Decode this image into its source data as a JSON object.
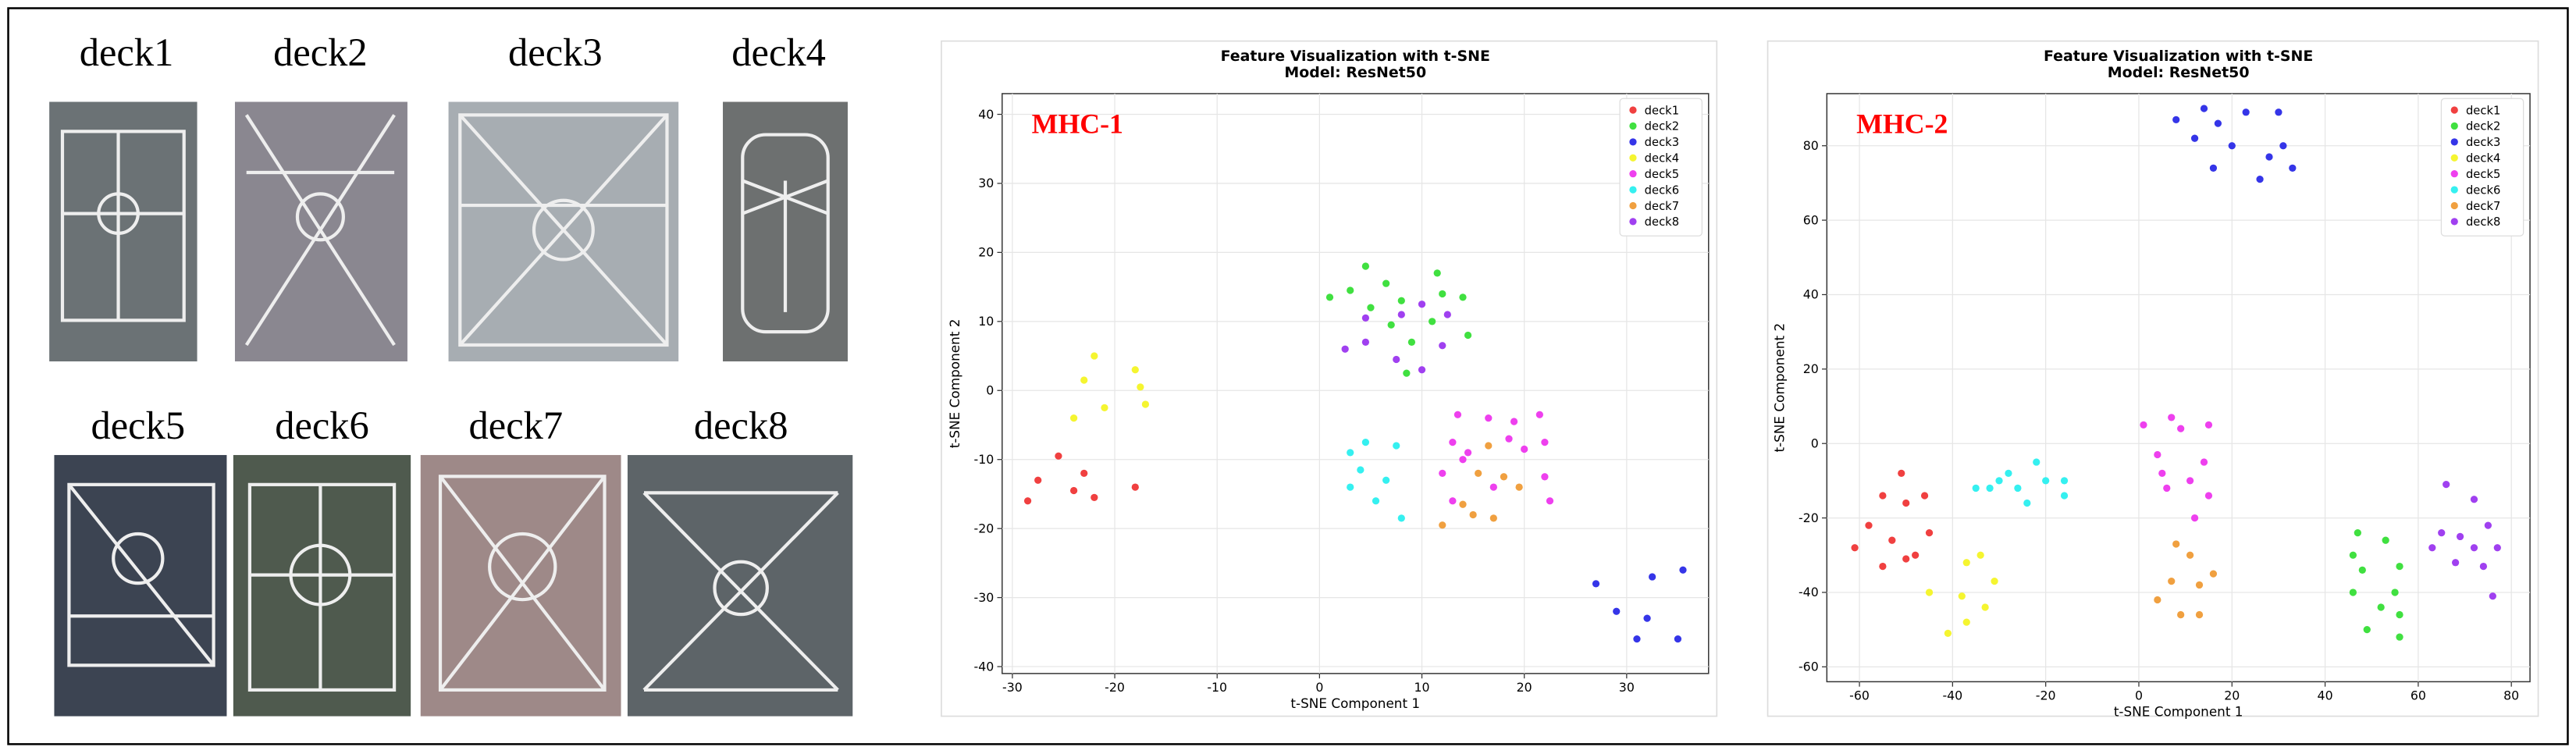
{
  "image_panels": {
    "labels": [
      "deck1",
      "deck2",
      "deck3",
      "deck4",
      "deck5",
      "deck6",
      "deck7",
      "deck8"
    ]
  },
  "chart_data": [
    {
      "type": "scatter",
      "title": "Feature Visualization with t-SNE",
      "subtitle": "Model: ResNet50",
      "annotation": "MHC-1",
      "x_label": "t-SNE Component 1",
      "y_label": "t-SNE Component 2",
      "xlim": [
        -31,
        38
      ],
      "ylim": [
        -41,
        43
      ],
      "xticks": [
        -30,
        -20,
        -10,
        0,
        10,
        20,
        30
      ],
      "yticks": [
        -40,
        -30,
        -20,
        -10,
        0,
        10,
        20,
        30,
        40
      ],
      "grid": true,
      "legend": "upper-right",
      "series": [
        {
          "name": "deck1",
          "color": "#f04040",
          "x": [
            -28.5,
            -27.5,
            -25.5,
            -24,
            -22,
            -23,
            -18
          ],
          "values": [
            -16,
            -13,
            -9.5,
            -14.5,
            -15.5,
            -12,
            -14
          ]
        },
        {
          "name": "deck2",
          "color": "#40e040",
          "x": [
            1,
            3,
            4.5,
            6.5,
            8,
            5,
            7,
            9,
            8.5,
            11.5,
            12,
            14,
            14.5,
            11
          ],
          "values": [
            13.5,
            14.5,
            18,
            15.5,
            13,
            12,
            9.5,
            7,
            2.5,
            17,
            14,
            13.5,
            8,
            10
          ]
        },
        {
          "name": "deck3",
          "color": "#3535e8",
          "x": [
            27,
            29,
            32.5,
            35.5,
            32,
            31,
            35
          ],
          "values": [
            -28,
            -32,
            -27,
            -26,
            -33,
            -36,
            -36
          ]
        },
        {
          "name": "deck4",
          "color": "#f5f530",
          "x": [
            -22,
            -21,
            -23,
            -24,
            -18,
            -17.5,
            -17
          ],
          "values": [
            5,
            -2.5,
            1.5,
            -4,
            3,
            0.5,
            -2
          ]
        },
        {
          "name": "deck5",
          "color": "#ee40ee",
          "x": [
            12,
            13,
            13.5,
            14.5,
            16.5,
            18.5,
            19,
            20,
            21.5,
            22,
            22,
            22.5,
            17,
            13,
            14
          ],
          "values": [
            -12,
            -7.5,
            -3.5,
            -9,
            -4,
            -7,
            -4.5,
            -8.5,
            -3.5,
            -7.5,
            -12.5,
            -16,
            -14,
            -16,
            -10
          ]
        },
        {
          "name": "deck6",
          "color": "#35f0f0",
          "x": [
            3,
            4.5,
            4,
            6.5,
            7.5,
            3,
            5.5,
            8
          ],
          "values": [
            -9,
            -7.5,
            -11.5,
            -13,
            -8,
            -14,
            -16,
            -18.5
          ]
        },
        {
          "name": "deck7",
          "color": "#f0a040",
          "x": [
            12,
            14,
            15.5,
            16.5,
            17,
            19.5,
            15,
            18
          ],
          "values": [
            -19.5,
            -16.5,
            -12,
            -8,
            -18.5,
            -14,
            -18,
            -12.5
          ]
        },
        {
          "name": "deck8",
          "color": "#a040f0",
          "x": [
            2.5,
            4.5,
            4.5,
            7.5,
            8,
            10,
            12,
            12.5,
            10
          ],
          "values": [
            6,
            10.5,
            7,
            4.5,
            11,
            12.5,
            6.5,
            11,
            3
          ]
        }
      ]
    },
    {
      "type": "scatter",
      "title": "Feature Visualization with t-SNE",
      "subtitle": "Model: ResNet50",
      "annotation": "MHC-2",
      "x_label": "t-SNE Component 1",
      "y_label": "t-SNE Component 2",
      "xlim": [
        -67,
        84
      ],
      "ylim": [
        -64,
        94
      ],
      "xticks": [
        -60,
        -40,
        -20,
        0,
        20,
        40,
        60,
        80
      ],
      "yticks": [
        -60,
        -40,
        -20,
        0,
        20,
        40,
        60,
        80
      ],
      "grid": true,
      "legend": "upper-right",
      "series": [
        {
          "name": "deck1",
          "color": "#f04040",
          "x": [
            -61,
            -58,
            -55,
            -53,
            -51,
            -50,
            -48,
            -46,
            -45,
            -55,
            -50
          ],
          "values": [
            -28,
            -22,
            -14,
            -26,
            -8,
            -16,
            -30,
            -14,
            -24,
            -33,
            -31
          ]
        },
        {
          "name": "deck2",
          "color": "#40e040",
          "x": [
            47,
            46,
            48,
            46,
            49,
            53,
            55,
            56,
            52,
            56,
            56
          ],
          "values": [
            -24,
            -30,
            -34,
            -40,
            -50,
            -26,
            -40,
            -33,
            -44,
            -46,
            -52
          ]
        },
        {
          "name": "deck3",
          "color": "#3535e8",
          "x": [
            8,
            12,
            14,
            17,
            16,
            20,
            23,
            26,
            28,
            30,
            31,
            33
          ],
          "values": [
            87,
            82,
            90,
            86,
            74,
            80,
            89,
            71,
            77,
            89,
            80,
            74
          ]
        },
        {
          "name": "deck4",
          "color": "#f5f530",
          "x": [
            -45,
            -41,
            -38,
            -37,
            -37,
            -34,
            -33,
            -31
          ],
          "values": [
            -40,
            -51,
            -41,
            -32,
            -48,
            -30,
            -44,
            -37
          ]
        },
        {
          "name": "deck5",
          "color": "#ee40ee",
          "x": [
            1,
            4,
            6,
            7,
            9,
            11,
            12,
            14,
            15,
            15,
            5
          ],
          "values": [
            5,
            -3,
            -12,
            7,
            4,
            -10,
            -20,
            -5,
            -14,
            5,
            -8
          ]
        },
        {
          "name": "deck6",
          "color": "#35f0f0",
          "x": [
            -35,
            -32,
            -30,
            -28,
            -26,
            -24,
            -22,
            -20,
            -16,
            -16
          ],
          "values": [
            -12,
            -12,
            -10,
            -8,
            -12,
            -16,
            -5,
            -10,
            -10,
            -14
          ]
        },
        {
          "name": "deck7",
          "color": "#f0a040",
          "x": [
            4,
            7,
            8,
            9,
            11,
            13,
            13,
            16
          ],
          "values": [
            -42,
            -37,
            -27,
            -46,
            -30,
            -38,
            -46,
            -35
          ]
        },
        {
          "name": "deck8",
          "color": "#a040f0",
          "x": [
            63,
            65,
            66,
            68,
            69,
            72,
            72,
            74,
            75,
            76,
            77
          ],
          "values": [
            -28,
            -24,
            -11,
            -32,
            -25,
            -28,
            -15,
            -33,
            -22,
            -41,
            -28
          ]
        }
      ]
    }
  ]
}
